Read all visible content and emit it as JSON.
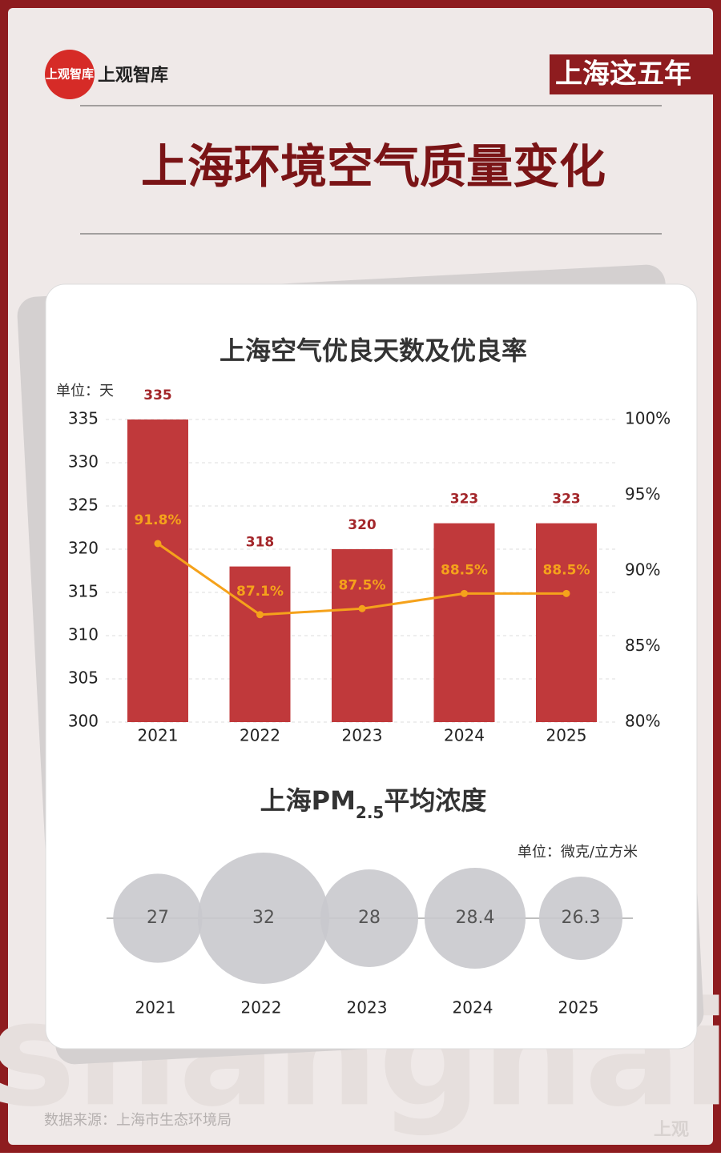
{
  "header": {
    "logo_text": "上观智库",
    "brand": "上观智库",
    "badge": "上海这五年",
    "title": "上海环境空气质量变化"
  },
  "chart_data": [
    {
      "type": "bar",
      "title": "上海空气优良天数及优良率",
      "unit": "单位：天",
      "categories": [
        "2021",
        "2022",
        "2023",
        "2024",
        "2025"
      ],
      "series": [
        {
          "type": "bar",
          "color": "#c0393b",
          "values": [
            335,
            318,
            320,
            323,
            323
          ]
        },
        {
          "type": "line",
          "axis": "y2",
          "color": "#f5a21b",
          "values": [
            91.8,
            87.1,
            87.5,
            88.5,
            88.5
          ],
          "value_labels": [
            "91.8%",
            "87.1%",
            "87.5%",
            "88.5%",
            "88.5%"
          ]
        }
      ],
      "ylim": [
        300,
        335
      ],
      "yticks": [
        300,
        305,
        310,
        315,
        320,
        325,
        330,
        335
      ],
      "y2lim": [
        80,
        100
      ],
      "y2ticks": [
        {
          "value": 80,
          "label": "80%"
        },
        {
          "value": 85,
          "label": "85%"
        },
        {
          "value": 90,
          "label": "90%"
        },
        {
          "value": 95,
          "label": "95%"
        },
        {
          "value": 100,
          "label": "100%"
        }
      ],
      "grid": true
    },
    {
      "type": "bubble",
      "title": "上海PM",
      "title_subscript": "2.5",
      "title_suffix": "平均浓度",
      "unit": "单位：微克/立方米",
      "categories": [
        "2021",
        "2022",
        "2023",
        "2024",
        "2025"
      ],
      "values": [
        27,
        32,
        28,
        28.4,
        26.3
      ],
      "color": "#c9c9cd"
    }
  ],
  "footer": {
    "source": "数据来源：上海市生态环境局",
    "watermark": "shanghai",
    "mark": "上观"
  }
}
